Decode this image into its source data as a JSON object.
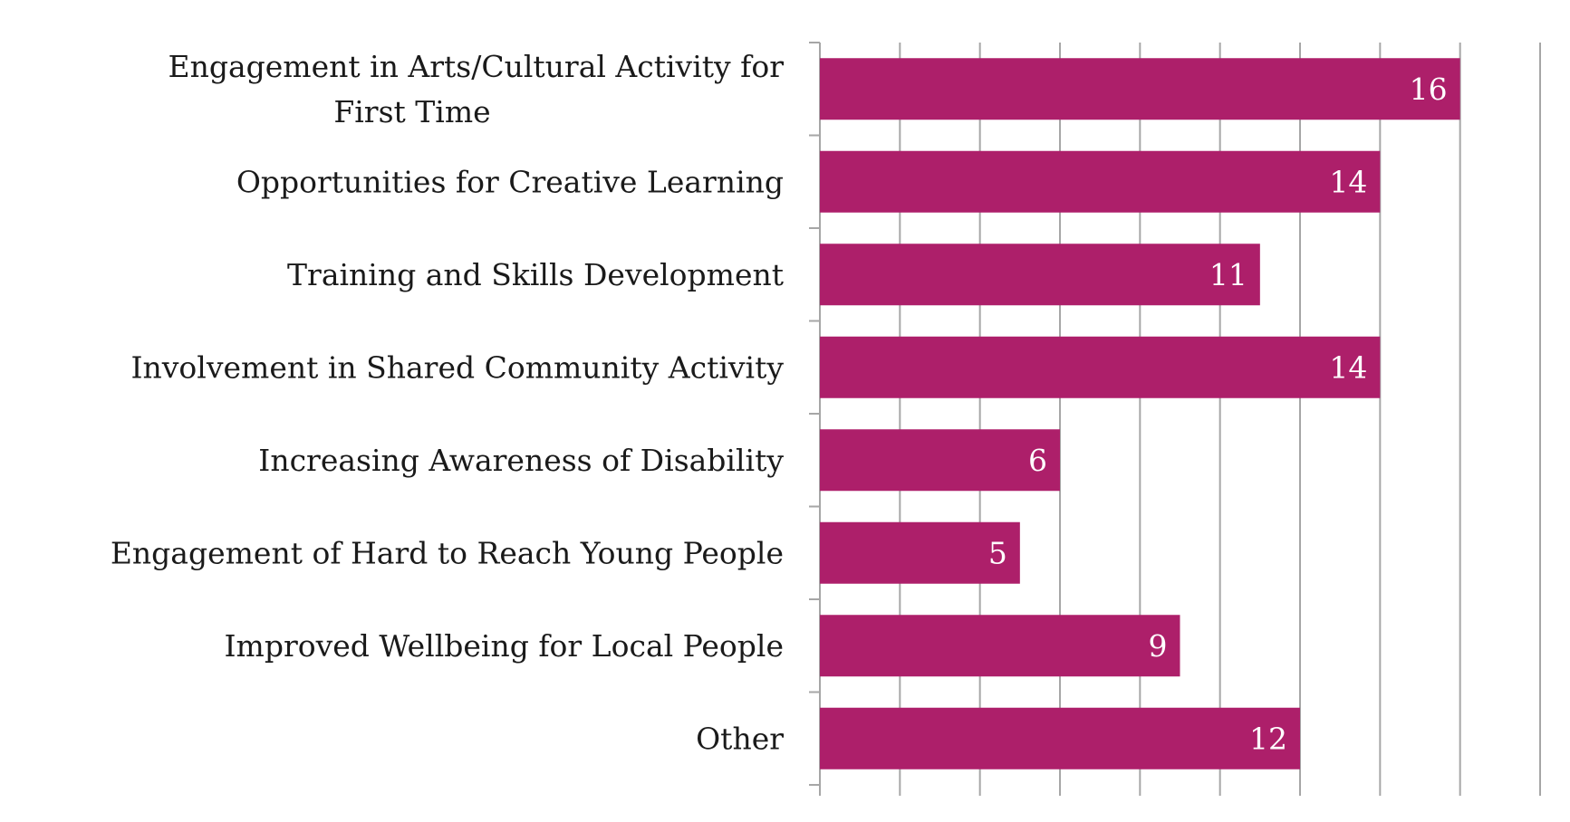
{
  "chart_data": {
    "type": "bar",
    "orientation": "horizontal",
    "title": "",
    "xlabel": "",
    "ylabel": "",
    "categories": [
      "Engagement in Arts/Cultural Activity for First Time",
      "Opportunities for Creative Learning",
      "Training and Skills Development",
      "Involvement in Shared Community Activity",
      "Increasing Awareness of Disability",
      "Engagement of Hard to Reach Young People",
      "Improved Wellbeing for Local People",
      "Other"
    ],
    "values": [
      16,
      14,
      11,
      14,
      6,
      5,
      9,
      12
    ],
    "data_labels": [
      "16",
      "14",
      "11",
      "14",
      "6",
      "5",
      "9",
      "12"
    ],
    "xlim": [
      0,
      18
    ],
    "x_major_step": 2,
    "grid": true,
    "legend": "none",
    "bar_color": "#ad1f6a",
    "gridline_color": "#a6a6a6",
    "label_color": "#1a1a1a",
    "value_label_color": "#ffffff"
  }
}
